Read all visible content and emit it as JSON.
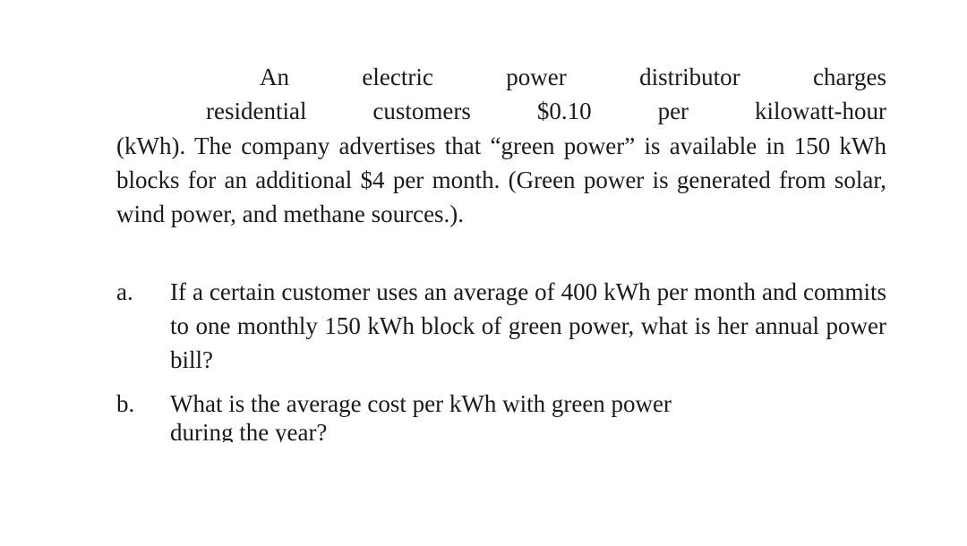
{
  "intro": {
    "line1": "An electric power distributor charges",
    "line2": "residential customers $0.10 per kilowatt-hour",
    "rest": "(kWh). The company advertises that “green power” is available in 150 kWh blocks for an additional $4 per month. (Green power is generated from solar, wind power, and methane sources.)."
  },
  "questions": [
    {
      "marker": "a.",
      "text": "If a certain customer uses an average of 400 kWh per month and commits to one monthly 150 kWh block of green power, what is her annual power bill?"
    },
    {
      "marker": "b.",
      "text_line1": "What is the average cost per kWh with green power",
      "text_cut": "during the year?"
    }
  ],
  "style": {
    "font_family": "Book Antiqua / Palatino serif",
    "font_size_pt": 20,
    "text_color": "#1a1a1a",
    "background": "#ffffff"
  }
}
